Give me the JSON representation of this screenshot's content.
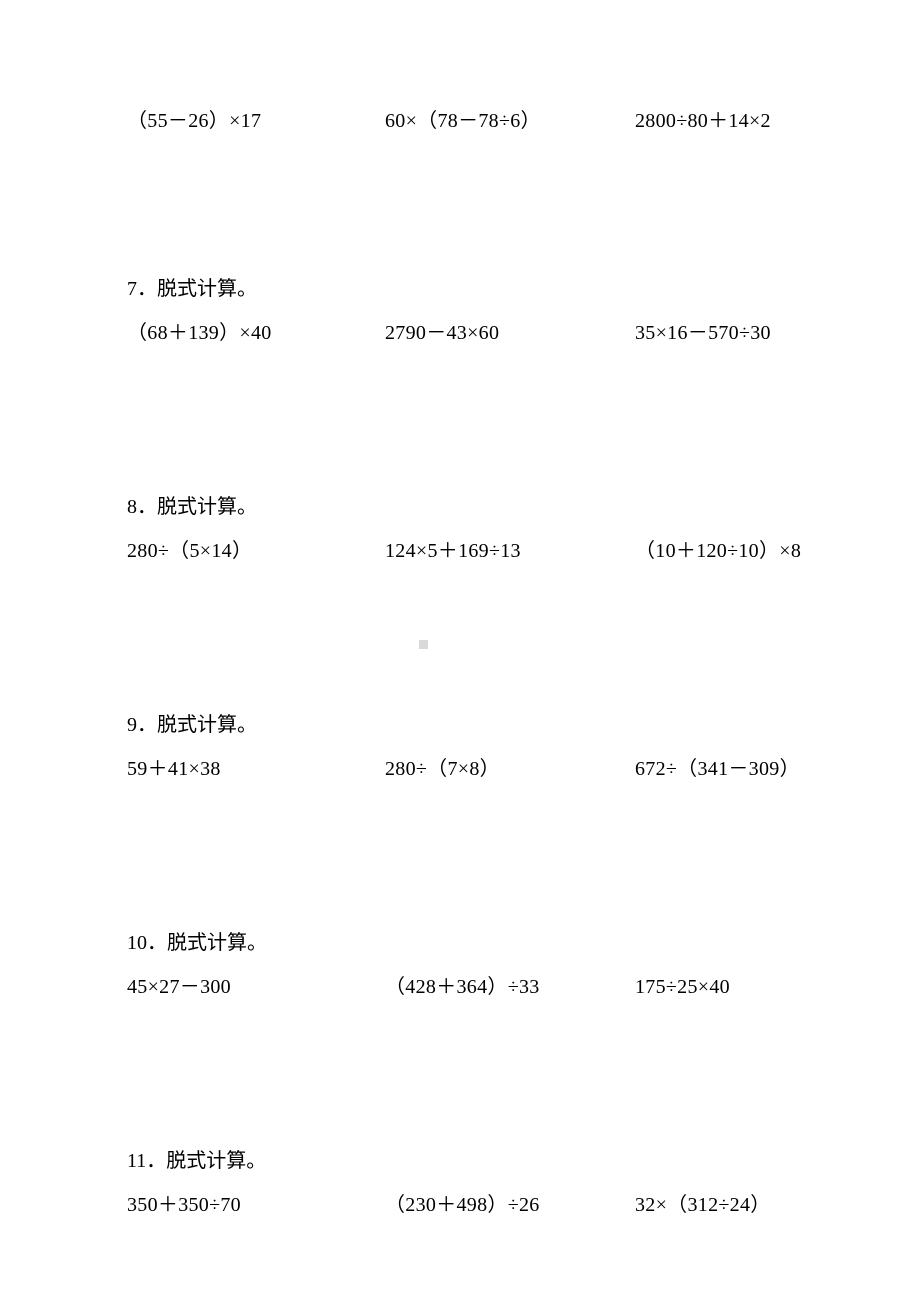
{
  "page": {
    "background_color": "#ffffff",
    "text_color": "#000000",
    "font_family": "SimSun",
    "font_size_pt": 15,
    "heading_label": "脱式计算。"
  },
  "topRow": {
    "c1": "（55－26）×17",
    "c2": "60×（78－78÷6）",
    "c3": "2800÷80＋14×2"
  },
  "problems": [
    {
      "num": "7．",
      "title": "脱式计算。",
      "c1": "（68＋139）×40",
      "c2": "2790－43×60",
      "c3": "35×16－570÷30"
    },
    {
      "num": "8．",
      "title": "脱式计算。",
      "c1": "280÷（5×14）",
      "c2": "124×5＋169÷13",
      "c3": "（10＋120÷10）×8"
    },
    {
      "num": "9．",
      "title": "脱式计算。",
      "c1": "59＋41×38",
      "c2": "280÷（7×8）",
      "c3": "672÷（341－309）"
    },
    {
      "num": "10．",
      "title": "脱式计算。",
      "c1": "45×27－300",
      "c2": "（428＋364）÷33",
      "c3": "175÷25×40"
    },
    {
      "num": "11．",
      "title": "脱式计算。",
      "c1": "350＋350÷70",
      "c2": "（230＋498）÷26",
      "c3": "32×（312÷24）"
    }
  ]
}
